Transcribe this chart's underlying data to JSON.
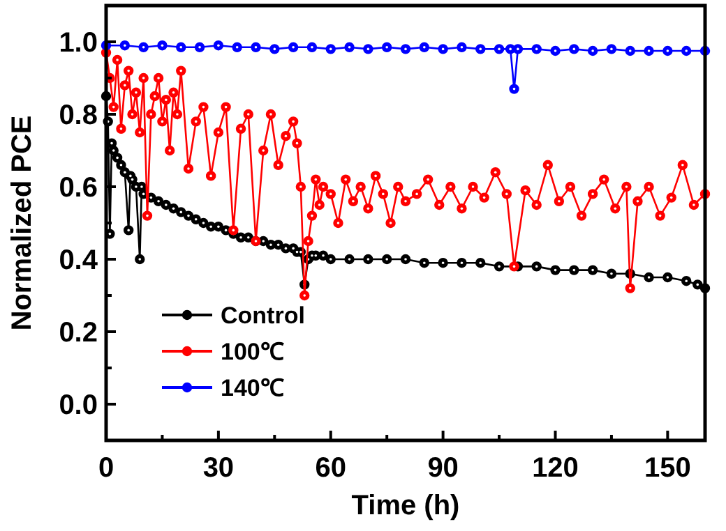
{
  "chart_data": {
    "type": "line",
    "xlabel": "Time (h)",
    "ylabel": "Normalized PCE",
    "xlim": [
      0,
      160
    ],
    "ylim": [
      -0.1,
      1.1
    ],
    "xticks": [
      0,
      30,
      60,
      90,
      120,
      150
    ],
    "yticks": [
      {
        "value": 0,
        "label": "0.0"
      },
      {
        "value": 0.2,
        "label": "0.2"
      },
      {
        "value": 0.4,
        "label": "0.4"
      },
      {
        "value": 0.6,
        "label": "0.6"
      },
      {
        "value": 0.8,
        "label": "0.8"
      },
      {
        "value": 1,
        "label": "1.0"
      }
    ],
    "marker": "circle",
    "legend": "bottom left",
    "grid": false,
    "series": [
      {
        "name": "Control",
        "color": "#000000",
        "x": [
          0,
          0.5,
          1,
          1.5,
          2,
          3,
          4,
          5,
          6,
          6.5,
          7,
          8,
          9,
          9.5,
          10,
          12,
          14,
          16,
          18,
          20,
          22,
          24,
          26,
          28,
          30,
          32,
          34,
          36,
          38,
          40,
          42,
          44,
          46,
          48,
          50,
          51,
          52,
          53,
          54,
          55,
          56,
          58,
          60,
          65,
          70,
          75,
          80,
          85,
          90,
          95,
          100,
          105,
          110,
          115,
          120,
          125,
          130,
          135,
          140,
          145,
          150,
          155,
          158,
          160
        ],
        "values": [
          0.85,
          0.78,
          0.47,
          0.72,
          0.7,
          0.68,
          0.66,
          0.64,
          0.48,
          0.63,
          0.62,
          0.6,
          0.4,
          0.6,
          0.58,
          0.57,
          0.56,
          0.55,
          0.54,
          0.53,
          0.52,
          0.51,
          0.5,
          0.49,
          0.49,
          0.48,
          0.47,
          0.46,
          0.46,
          0.45,
          0.45,
          0.44,
          0.44,
          0.43,
          0.43,
          0.42,
          0.42,
          0.33,
          0.4,
          0.41,
          0.41,
          0.41,
          0.4,
          0.4,
          0.4,
          0.4,
          0.4,
          0.39,
          0.39,
          0.39,
          0.39,
          0.38,
          0.38,
          0.38,
          0.37,
          0.37,
          0.37,
          0.36,
          0.36,
          0.35,
          0.35,
          0.34,
          0.33,
          0.32
        ]
      },
      {
        "name": "100℃",
        "color": "#ff0000",
        "x": [
          0,
          1,
          2,
          3,
          4,
          5,
          6,
          7,
          8,
          9,
          10,
          11,
          12,
          13,
          14,
          15,
          16,
          17,
          18,
          19,
          20,
          22,
          24,
          26,
          28,
          30,
          32,
          34,
          36,
          38,
          40,
          42,
          44,
          46,
          48,
          50,
          51,
          52,
          53,
          54,
          55,
          56,
          57,
          58,
          60,
          62,
          64,
          66,
          68,
          70,
          72,
          74,
          76,
          78,
          80,
          83,
          86,
          89,
          92,
          95,
          98,
          101,
          104,
          107,
          109,
          112,
          115,
          118,
          121,
          124,
          127,
          130,
          133,
          136,
          139,
          140,
          142,
          145,
          148,
          151,
          154,
          157,
          160
        ],
        "values": [
          0.97,
          0.9,
          0.82,
          0.95,
          0.76,
          0.88,
          0.92,
          0.8,
          0.86,
          0.75,
          0.9,
          0.52,
          0.8,
          0.85,
          0.9,
          0.78,
          0.84,
          0.7,
          0.86,
          0.8,
          0.92,
          0.65,
          0.78,
          0.82,
          0.63,
          0.75,
          0.82,
          0.48,
          0.76,
          0.8,
          0.45,
          0.7,
          0.8,
          0.66,
          0.74,
          0.78,
          0.72,
          0.6,
          0.3,
          0.45,
          0.52,
          0.62,
          0.55,
          0.6,
          0.58,
          0.5,
          0.62,
          0.56,
          0.6,
          0.54,
          0.63,
          0.58,
          0.5,
          0.6,
          0.56,
          0.58,
          0.62,
          0.55,
          0.6,
          0.54,
          0.6,
          0.57,
          0.64,
          0.58,
          0.38,
          0.59,
          0.55,
          0.66,
          0.56,
          0.6,
          0.52,
          0.58,
          0.62,
          0.54,
          0.6,
          0.32,
          0.56,
          0.6,
          0.52,
          0.57,
          0.66,
          0.55,
          0.58
        ]
      },
      {
        "name": "140℃",
        "color": "#0000ff",
        "x": [
          0,
          5,
          10,
          15,
          20,
          25,
          30,
          35,
          40,
          45,
          50,
          55,
          60,
          65,
          70,
          75,
          80,
          85,
          90,
          95,
          100,
          105,
          108,
          109,
          110,
          115,
          120,
          125,
          130,
          135,
          140,
          145,
          150,
          155,
          160
        ],
        "values": [
          0.99,
          0.99,
          0.985,
          0.99,
          0.985,
          0.985,
          0.99,
          0.985,
          0.985,
          0.98,
          0.985,
          0.985,
          0.98,
          0.985,
          0.98,
          0.985,
          0.98,
          0.985,
          0.98,
          0.985,
          0.98,
          0.98,
          0.98,
          0.87,
          0.98,
          0.98,
          0.975,
          0.98,
          0.975,
          0.98,
          0.975,
          0.975,
          0.975,
          0.975,
          0.975
        ]
      }
    ]
  }
}
